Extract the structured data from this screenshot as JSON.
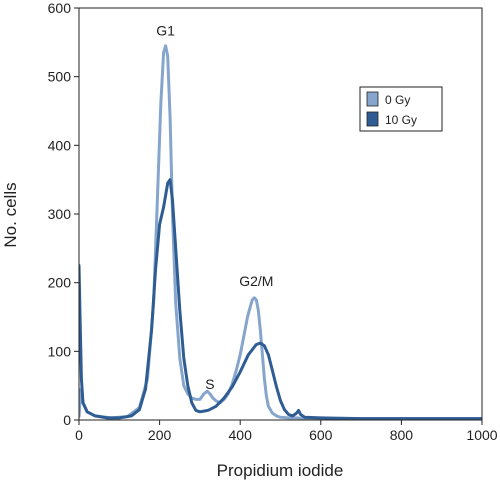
{
  "chart_data": {
    "type": "line",
    "title": "",
    "xlabel": "Propidium iodide",
    "ylabel": "No. cells",
    "xlim": [
      0,
      1000
    ],
    "ylim": [
      0,
      600
    ],
    "x_ticks": [
      0,
      200,
      400,
      600,
      800,
      1000
    ],
    "y_ticks": [
      0,
      100,
      200,
      300,
      400,
      500,
      600
    ],
    "grid": false,
    "legend_position": "top-right",
    "annotations": [
      {
        "label": "G1",
        "x": 215,
        "y": 560
      },
      {
        "label": "S",
        "x": 325,
        "y": 45
      },
      {
        "label": "G2/M",
        "x": 440,
        "y": 195
      }
    ],
    "series": [
      {
        "name": "0 Gy",
        "color": "#86a5cc",
        "x": [
          0,
          5,
          10,
          20,
          40,
          80,
          120,
          150,
          170,
          185,
          195,
          203,
          210,
          215,
          220,
          226,
          232,
          240,
          250,
          260,
          270,
          280,
          290,
          300,
          310,
          318,
          325,
          332,
          340,
          350,
          360,
          370,
          380,
          390,
          400,
          410,
          418,
          425,
          430,
          435,
          440,
          445,
          450,
          455,
          460,
          465,
          470,
          480,
          490,
          500,
          520,
          540,
          560,
          600,
          700,
          800,
          1000
        ],
        "values": [
          5,
          45,
          25,
          12,
          6,
          3,
          5,
          18,
          60,
          170,
          330,
          460,
          535,
          545,
          530,
          440,
          300,
          170,
          90,
          50,
          38,
          32,
          30,
          30,
          38,
          42,
          38,
          32,
          28,
          25,
          30,
          38,
          52,
          72,
          95,
          125,
          150,
          165,
          175,
          178,
          175,
          160,
          130,
          95,
          60,
          35,
          20,
          10,
          6,
          4,
          3,
          3,
          2,
          2,
          2,
          2,
          2
        ]
      },
      {
        "name": "10 Gy",
        "color": "#2f5d93",
        "x": [
          0,
          3,
          6,
          10,
          20,
          40,
          70,
          100,
          130,
          150,
          165,
          180,
          190,
          200,
          210,
          220,
          226,
          232,
          240,
          250,
          260,
          270,
          280,
          290,
          300,
          320,
          340,
          360,
          380,
          400,
          420,
          440,
          450,
          460,
          470,
          480,
          490,
          500,
          510,
          520,
          530,
          540,
          545,
          550,
          560,
          600,
          700,
          800,
          1000
        ],
        "values": [
          225,
          140,
          60,
          25,
          12,
          6,
          3,
          3,
          6,
          15,
          45,
          130,
          220,
          285,
          310,
          345,
          350,
          320,
          250,
          160,
          90,
          50,
          25,
          14,
          12,
          14,
          20,
          32,
          48,
          70,
          95,
          110,
          112,
          108,
          95,
          72,
          48,
          28,
          15,
          8,
          6,
          10,
          14,
          8,
          4,
          3,
          2,
          2,
          2
        ]
      }
    ]
  }
}
